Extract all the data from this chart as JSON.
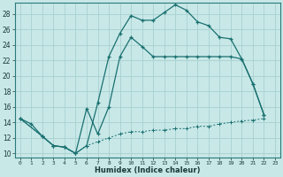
{
  "xlabel": "Humidex (Indice chaleur)",
  "bg_color": "#c8e8e8",
  "line_color": "#1a7070",
  "grid_color": "#a8d0d0",
  "xlim": [
    -0.5,
    23.5
  ],
  "ylim": [
    9.5,
    29.5
  ],
  "ytick_pos": [
    10,
    12,
    14,
    16,
    18,
    20,
    22,
    24,
    26,
    28
  ],
  "ytick_labels": [
    "10",
    "12",
    "14",
    "16",
    "18",
    "20",
    "22",
    "24",
    "26",
    "28"
  ],
  "xtick_pos": [
    0,
    1,
    2,
    3,
    4,
    5,
    6,
    7,
    8,
    9,
    10,
    11,
    12,
    13,
    14,
    15,
    16,
    17,
    18,
    19,
    20,
    21,
    22,
    23
  ],
  "xtick_labels": [
    "0",
    "1",
    "2",
    "3",
    "4",
    "5",
    "6",
    "7",
    "8",
    "9",
    "10",
    "11",
    "12",
    "13",
    "14",
    "15",
    "16",
    "17",
    "18",
    "19",
    "20",
    "21",
    "22",
    "23"
  ],
  "curve1_x": [
    0,
    1,
    2,
    3,
    4,
    5,
    6,
    7,
    8,
    9,
    10,
    11,
    12,
    13,
    14,
    15,
    16,
    17,
    18,
    19,
    20,
    21,
    22
  ],
  "curve1_y": [
    14.5,
    13.8,
    12.2,
    11.0,
    10.8,
    10.0,
    11.0,
    16.5,
    22.5,
    25.5,
    27.8,
    27.2,
    27.2,
    28.2,
    29.2,
    28.5,
    27.0,
    26.5,
    25.0,
    24.8,
    22.2,
    19.0,
    15.0
  ],
  "curve2_x": [
    0,
    2,
    3,
    4,
    5,
    6,
    7,
    8,
    9,
    10,
    11,
    12,
    13,
    14,
    15,
    16,
    17,
    18,
    19,
    20,
    21,
    22
  ],
  "curve2_y": [
    14.5,
    12.2,
    11.0,
    10.8,
    10.0,
    15.8,
    12.5,
    16.0,
    22.5,
    25.0,
    23.8,
    22.5,
    22.5,
    22.5,
    22.5,
    22.5,
    22.5,
    22.5,
    22.5,
    22.2,
    19.0,
    15.0
  ],
  "curve3_x": [
    0,
    2,
    3,
    4,
    5,
    6,
    7,
    8,
    9,
    10,
    11,
    12,
    13,
    14,
    15,
    16,
    17,
    18,
    19,
    20,
    21,
    22
  ],
  "curve3_y": [
    14.5,
    12.2,
    11.0,
    10.8,
    10.0,
    11.0,
    11.5,
    12.0,
    12.5,
    12.8,
    12.8,
    13.0,
    13.0,
    13.2,
    13.2,
    13.5,
    13.5,
    13.8,
    14.0,
    14.2,
    14.3,
    14.5
  ]
}
